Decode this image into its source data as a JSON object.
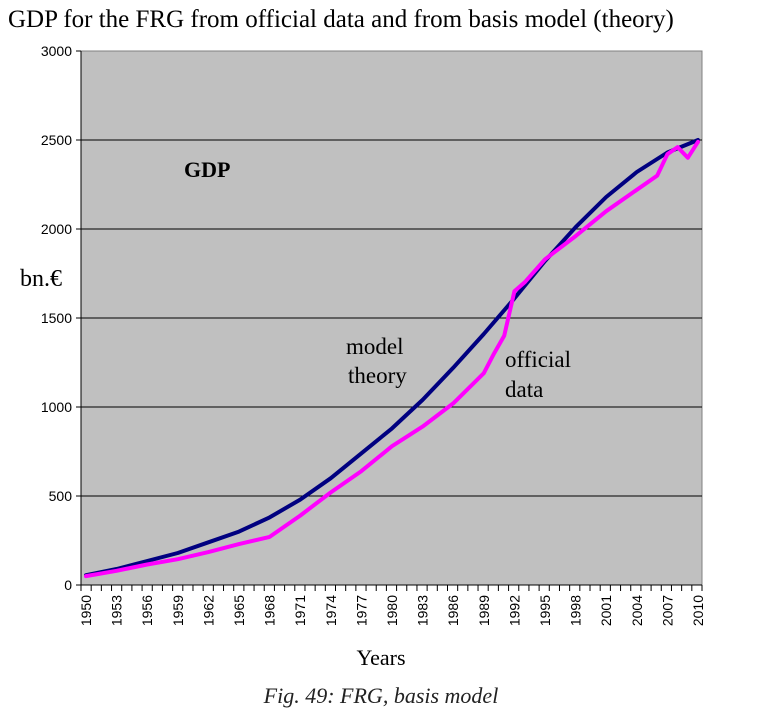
{
  "chart_data": {
    "type": "line",
    "title": "GDP for the FRG from official data and from basis model (theory)",
    "xlabel": "Years",
    "ylabel": "bn.€",
    "ylim": [
      0,
      3000
    ],
    "yticks": [
      0,
      500,
      1000,
      1500,
      2000,
      2500,
      3000
    ],
    "xlim": [
      1950,
      2010
    ],
    "xtick_labels": [
      "1950",
      "1953",
      "1956",
      "1959",
      "1962",
      "1965",
      "1968",
      "1971",
      "1974",
      "1977",
      "1980",
      "1983",
      "1986",
      "1989",
      "1992",
      "1995",
      "1998",
      "2001",
      "2004",
      "2007",
      "2010"
    ],
    "grid": true,
    "annotations": [
      "GDP",
      "model",
      "theory",
      "official",
      "data"
    ],
    "series": [
      {
        "name": "model theory",
        "color": "#000080",
        "x": [
          1950,
          1953,
          1956,
          1959,
          1962,
          1965,
          1968,
          1971,
          1974,
          1977,
          1980,
          1983,
          1986,
          1989,
          1992,
          1995,
          1998,
          2001,
          2004,
          2007,
          2010
        ],
        "values": [
          55,
          90,
          135,
          180,
          240,
          300,
          380,
          480,
          600,
          740,
          880,
          1040,
          1220,
          1410,
          1610,
          1820,
          2010,
          2180,
          2320,
          2430,
          2500
        ]
      },
      {
        "name": "official data",
        "color": "#ff00ff",
        "x": [
          1950,
          1953,
          1956,
          1959,
          1962,
          1965,
          1968,
          1971,
          1974,
          1977,
          1980,
          1983,
          1986,
          1989,
          1990,
          1991,
          1992,
          1993,
          1995,
          1998,
          2001,
          2004,
          2006,
          2007,
          2008,
          2009,
          2010
        ],
        "values": [
          50,
          80,
          115,
          145,
          185,
          230,
          270,
          390,
          520,
          640,
          780,
          890,
          1020,
          1190,
          1300,
          1400,
          1650,
          1700,
          1830,
          1960,
          2100,
          2220,
          2300,
          2420,
          2460,
          2400,
          2490
        ]
      }
    ]
  },
  "caption": "Fig. 49: FRG, basis model"
}
